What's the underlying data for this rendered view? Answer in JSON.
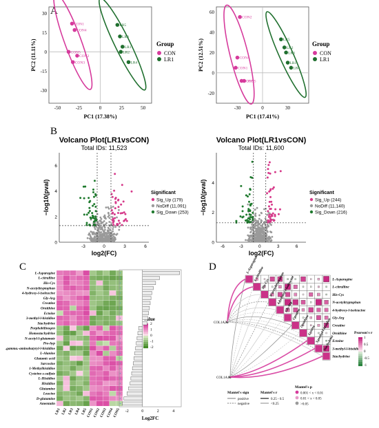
{
  "panel_labels": {
    "a": "A",
    "b": "B",
    "c": "C",
    "d": "D"
  },
  "colors": {
    "con": "#d63a9c",
    "lr1": "#1f6f2e",
    "sig_up": "#d63a8a",
    "nodiff": "#9a9a9a",
    "sig_down": "#1f7a2e"
  },
  "chart_data": [
    {
      "type": "scatter",
      "xlabel": "PC1 (17.38%)",
      "ylabel": "PC2 (11.11%)",
      "xlim": [
        -60,
        60
      ],
      "ylim": [
        -40,
        35
      ],
      "xticks": [
        "-50",
        "-25",
        "0",
        "25",
        "50"
      ],
      "yticks": [
        "30",
        "15",
        "0",
        "-15",
        "-30"
      ],
      "legend": {
        "title": "Group",
        "entries": [
          "CON",
          "LR1"
        ],
        "placement": "right"
      },
      "series": [
        {
          "name": "CON",
          "points": [
            {
              "x": -33,
              "y": 22,
              "label": "CON1"
            },
            {
              "x": -30,
              "y": 17,
              "label": "CON4"
            },
            {
              "x": -37,
              "y": 0,
              "label": "CON5"
            },
            {
              "x": -27,
              "y": -3,
              "label": "CON2"
            },
            {
              "x": -32,
              "y": -8,
              "label": "CON3"
            }
          ]
        },
        {
          "name": "LR1",
          "points": [
            {
              "x": 20,
              "y": 21,
              "label": "LR5"
            },
            {
              "x": 23,
              "y": 12,
              "label": "LR3"
            },
            {
              "x": 26,
              "y": 4,
              "label": "LR1"
            },
            {
              "x": 24,
              "y": 0,
              "label": "LR2"
            },
            {
              "x": 33,
              "y": -8,
              "label": "LR4"
            }
          ]
        }
      ]
    },
    {
      "type": "scatter",
      "xlabel": "PC1 (17.41%)",
      "ylabel": "PC2 (12.51%)",
      "xlim": [
        -55,
        55
      ],
      "ylim": [
        -30,
        65
      ],
      "xticks": [
        "-30",
        "0",
        "30"
      ],
      "yticks": [
        "60",
        "40",
        "20",
        "0",
        "-20"
      ],
      "legend": {
        "title": "Group",
        "entries": [
          "CON",
          "LR1"
        ],
        "placement": "right"
      },
      "series": [
        {
          "name": "CON",
          "points": [
            {
              "x": -27,
              "y": 55,
              "label": "CON2"
            },
            {
              "x": -30,
              "y": 15,
              "label": "CON4"
            },
            {
              "x": -32,
              "y": 5,
              "label": "CON1"
            },
            {
              "x": -25,
              "y": -8,
              "label": "CON3"
            },
            {
              "x": -22,
              "y": -8,
              "label": "CON5"
            }
          ]
        },
        {
          "name": "LR1",
          "points": [
            {
              "x": 22,
              "y": 33,
              "label": "LR5"
            },
            {
              "x": 26,
              "y": 25,
              "label": "LR2"
            },
            {
              "x": 28,
              "y": 20,
              "label": "LR3"
            },
            {
              "x": 30,
              "y": 10,
              "label": "LR1"
            },
            {
              "x": 34,
              "y": 5,
              "label": "LR4"
            }
          ]
        }
      ]
    },
    {
      "type": "scatter",
      "title": "Volcano Plot(LR1vsCON)",
      "subtitle": "Total IDs: 11,523",
      "xlabel": "log2(FC)",
      "ylabel": "−log10(pval)",
      "xlim": [
        -6.5,
        6.5
      ],
      "ylim": [
        0,
        7
      ],
      "xticks": [
        "-3",
        "0",
        "3",
        "6"
      ],
      "yticks": [
        "0",
        "2",
        "4",
        "6"
      ],
      "legend": {
        "title": "Significant",
        "entries": [
          "Sig_Up (179)",
          "NoDiff (11,091)",
          "Sig_Down (253)"
        ],
        "placement": "right"
      },
      "series": [
        {
          "name": "Sig_Up",
          "count": 179
        },
        {
          "name": "NoDiff",
          "count": 11091
        },
        {
          "name": "Sig_Down",
          "count": 253
        }
      ]
    },
    {
      "type": "scatter",
      "title": "Volcano Plot(LR1vsCON)",
      "subtitle": "Total IDs: 11,600",
      "xlabel": "log2(FC)",
      "ylabel": "−log10(pval)",
      "xlim": [
        -7,
        7.5
      ],
      "ylim": [
        0,
        6
      ],
      "xticks": [
        "-6",
        "-3",
        "0",
        "3",
        "6"
      ],
      "yticks": [
        "0",
        "2",
        "4"
      ],
      "legend": {
        "title": "Significant",
        "entries": [
          "Sig_Up (244)",
          "NoDiff (11,140)",
          "Sig_Down (216)"
        ],
        "placement": "right"
      },
      "series": [
        {
          "name": "Sig_Up",
          "count": 244
        },
        {
          "name": "NoDiff",
          "count": 11140
        },
        {
          "name": "Sig_Down",
          "count": 216
        }
      ]
    },
    {
      "type": "heatmap",
      "rows": [
        "L-Asparagine",
        "L-citrulline",
        "His-Cys",
        "N-acetyltryptophan",
        "4-hydroxy-l-isoleucine",
        "Gly-Arg",
        "Creatine",
        "Ornithine",
        "Ectoine",
        "3-methyl-l-histidine",
        "Stachydrine",
        "Porphobilinogen",
        "Homostachydrine",
        "N-acetyl-l-glutamate",
        "Pro-hyp",
        ".gamma.-aminobutyryl-l-histidine",
        "L-Alanine",
        "Glutamic acid",
        "Sarcosine",
        "1-Methylhistidine",
        "Cysteine-s-sulfate",
        "L-Histidine",
        "Histidine",
        "Glutamine",
        "Leucine",
        "D-glutamine",
        "Amentatin"
      ],
      "columns": [
        "LR1",
        "LR2",
        "LR3",
        "LR4",
        "LR5",
        "CON1",
        "CON2",
        "CON3",
        "CON4",
        "CON5"
      ],
      "legend": {
        "title": "Value",
        "ticks": [
          "2",
          "1",
          "0",
          "-1",
          "-2"
        ],
        "placement": "right"
      }
    },
    {
      "type": "bar",
      "xlabel": "Log2FC",
      "xticks": [
        "-2",
        "0",
        "2",
        "4"
      ],
      "categories": [
        "L-Asparagine",
        "L-citrulline",
        "His-Cys",
        "N-acetyltryptophan",
        "4-hydroxy-l-isoleucine",
        "Gly-Arg",
        "Creatine",
        "Ornithine",
        "Ectoine",
        "3-methyl-l-histidine",
        "Stachydrine",
        "Porphobilinogen",
        "Homostachydrine",
        "N-acetyl-l-glutamate",
        "Pro-hyp",
        ".gamma.-aminobutyryl-l-histidine",
        "L-Alanine",
        "Glutamic acid",
        "Sarcosine",
        "1-Methylhistidine",
        "Cysteine-s-sulfate",
        "L-Histidine",
        "Histidine",
        "Glutamine",
        "Leucine",
        "D-glutamine",
        "Amentatin"
      ],
      "values": [
        4.8,
        2.2,
        1.7,
        1.4,
        1.2,
        1.1,
        1.0,
        0.9,
        0.8,
        0.7,
        0.6,
        -0.5,
        -0.6,
        -0.7,
        -0.8,
        -0.9,
        -1.0,
        -1.1,
        -1.2,
        -1.3,
        -1.4,
        -1.5,
        -1.6,
        -1.8,
        -2.0,
        -2.4,
        -2.6
      ]
    },
    {
      "type": "heatmap",
      "metabolites": [
        "L-Asparagine",
        "L-citrulline",
        "His-Cys",
        "N-acetyltryptophan",
        "4-hydroxy-l-isoleucine",
        "Gly-Arg",
        "Creatine",
        "Ornithine",
        "Ectoine",
        "3-methyl-l-histidine",
        "Stachydrine"
      ],
      "genes": [
        "COL1A2",
        "COL1A1"
      ],
      "legend": {
        "title": "Pearson's r",
        "ticks": [
          "1",
          "0.5",
          "0",
          "-0.5",
          "-1"
        ],
        "placement": "right"
      },
      "mantel_sign": {
        "title": "Mantel's sign",
        "entries": [
          "positive",
          "negative"
        ]
      },
      "mantel_r": {
        "title": "Mantel's r",
        "entries": [
          "0.25 - 0.5",
          "<0.25"
        ]
      },
      "mantel_p": {
        "title": "Mantel's p",
        "entries": [
          "0.001 < x < 0.01",
          "0.01 < x < 0.05",
          ">0.05"
        ]
      }
    }
  ]
}
